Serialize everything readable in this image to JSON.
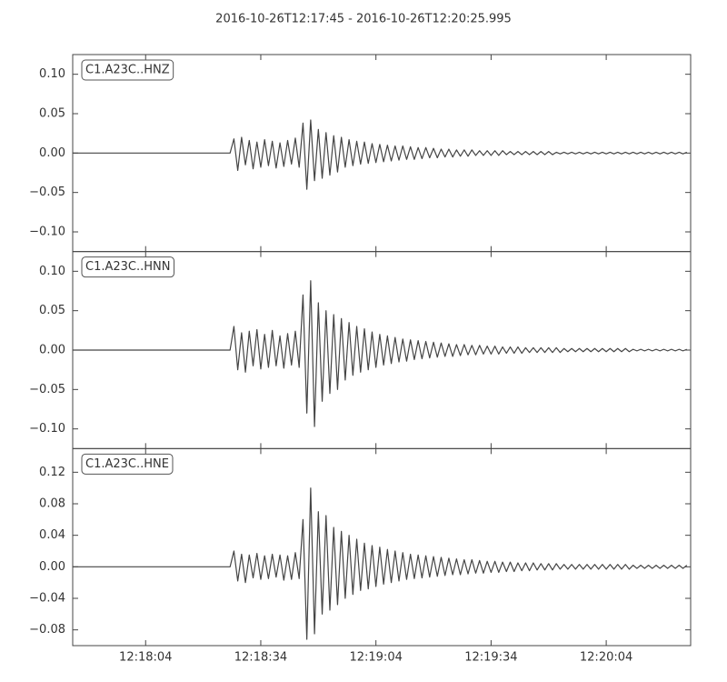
{
  "chart_data": {
    "type": "line",
    "title": "2016-10-26T12:17:45  -  2016-10-26T12:20:25.995",
    "x": [
      "12:17:45",
      "12:17:46",
      "12:17:47",
      "12:17:48",
      "12:17:49",
      "12:17:50",
      "12:17:51",
      "12:17:52",
      "12:17:53",
      "12:17:54",
      "12:17:55",
      "12:17:56",
      "12:17:57",
      "12:17:58",
      "12:17:59",
      "12:18:00",
      "12:18:01",
      "12:18:02",
      "12:18:03",
      "12:18:04",
      "12:18:05",
      "12:18:06",
      "12:18:07",
      "12:18:08",
      "12:18:09",
      "12:18:10",
      "12:18:11",
      "12:18:12",
      "12:18:13",
      "12:18:14",
      "12:18:15",
      "12:18:16",
      "12:18:17",
      "12:18:18",
      "12:18:19",
      "12:18:20",
      "12:18:21",
      "12:18:22",
      "12:18:23",
      "12:18:24",
      "12:18:25",
      "12:18:26",
      "12:18:27",
      "12:18:28",
      "12:18:29",
      "12:18:30",
      "12:18:31",
      "12:18:32",
      "12:18:33",
      "12:18:34",
      "12:18:35",
      "12:18:36",
      "12:18:37",
      "12:18:38",
      "12:18:39",
      "12:18:40",
      "12:18:41",
      "12:18:42",
      "12:18:43",
      "12:18:44",
      "12:18:45",
      "12:18:46",
      "12:18:47",
      "12:18:48",
      "12:18:49",
      "12:18:50",
      "12:18:51",
      "12:18:52",
      "12:18:53",
      "12:18:54",
      "12:18:55",
      "12:18:56",
      "12:18:57",
      "12:18:58",
      "12:18:59",
      "12:19:00",
      "12:19:01",
      "12:19:02",
      "12:19:03",
      "12:19:04",
      "12:19:05",
      "12:19:06",
      "12:19:07",
      "12:19:08",
      "12:19:09",
      "12:19:10",
      "12:19:11",
      "12:19:12",
      "12:19:13",
      "12:19:14",
      "12:19:15",
      "12:19:16",
      "12:19:17",
      "12:19:18",
      "12:19:19",
      "12:19:20",
      "12:19:21",
      "12:19:22",
      "12:19:23",
      "12:19:24",
      "12:19:25",
      "12:19:26",
      "12:19:27",
      "12:19:28",
      "12:19:29",
      "12:19:30",
      "12:19:31",
      "12:19:32",
      "12:19:33",
      "12:19:34",
      "12:19:35",
      "12:19:36",
      "12:19:37",
      "12:19:38",
      "12:19:39",
      "12:19:40",
      "12:19:41",
      "12:19:42",
      "12:19:43",
      "12:19:44",
      "12:19:45",
      "12:19:46",
      "12:19:47",
      "12:19:48",
      "12:19:49",
      "12:19:50",
      "12:19:51",
      "12:19:52",
      "12:19:53",
      "12:19:54",
      "12:19:55",
      "12:19:56",
      "12:19:57",
      "12:19:58",
      "12:19:59",
      "12:20:00",
      "12:20:01",
      "12:20:02",
      "12:20:03",
      "12:20:04",
      "12:20:05",
      "12:20:06",
      "12:20:07",
      "12:20:08",
      "12:20:09",
      "12:20:10",
      "12:20:11",
      "12:20:12",
      "12:20:13",
      "12:20:14",
      "12:20:15",
      "12:20:16",
      "12:20:17",
      "12:20:18",
      "12:20:19",
      "12:20:20",
      "12:20:21",
      "12:20:22",
      "12:20:23",
      "12:20:24",
      "12:20:25"
    ],
    "xlim": [
      "12:17:45",
      "12:20:25.995"
    ],
    "xticks": [
      "12:18:04",
      "12:18:34",
      "12:19:04",
      "12:19:34",
      "12:20:04"
    ],
    "series": [
      {
        "name": "C1.A23C..HNZ",
        "color": "#444444",
        "ylim": [
          -0.125,
          0.125
        ],
        "yticks": [
          {
            "value": 0.1,
            "label": "0.10"
          },
          0.05,
          {
            "value": 0,
            "label": "0.00"
          },
          {
            "value": -0.05,
            "label": "−0.05"
          },
          {
            "value": -0.1,
            "label": "−0.10"
          }
        ],
        "values": [
          0,
          0,
          0,
          0,
          0,
          0,
          0,
          0,
          0,
          0,
          0,
          0,
          0,
          0,
          0,
          0,
          0,
          0,
          0,
          0,
          0,
          0,
          0,
          0,
          0,
          0,
          0,
          0,
          0,
          0,
          0,
          0,
          0,
          0,
          0,
          0,
          0,
          0,
          0,
          0,
          0,
          0,
          0.018,
          -0.022,
          0.02,
          -0.015,
          0.016,
          -0.02,
          0.014,
          -0.018,
          0.017,
          -0.016,
          0.015,
          -0.019,
          0.013,
          -0.017,
          0.016,
          -0.014,
          0.019,
          -0.018,
          0.038,
          -0.046,
          0.042,
          -0.035,
          0.03,
          -0.032,
          0.026,
          -0.028,
          0.022,
          -0.024,
          0.02,
          -0.018,
          0.017,
          -0.016,
          0.015,
          -0.014,
          0.014,
          -0.013,
          0.012,
          -0.012,
          0.011,
          -0.011,
          0.01,
          -0.01,
          0.009,
          -0.009,
          0.009,
          -0.008,
          0.008,
          -0.008,
          0.007,
          -0.007,
          0.007,
          -0.006,
          0.006,
          -0.006,
          0.005,
          -0.005,
          0.005,
          -0.005,
          0.004,
          -0.004,
          0.004,
          -0.004,
          0.004,
          -0.003,
          0.003,
          -0.003,
          0.003,
          -0.003,
          0.003,
          -0.003,
          0.003,
          -0.002,
          0.002,
          -0.002,
          0.002,
          -0.002,
          0.002,
          -0.002,
          0.002,
          -0.002,
          0.002,
          -0.002,
          0.002,
          -0.002,
          0.001,
          -0.001,
          0.001,
          -0.001,
          0.001,
          -0.001,
          0.001,
          -0.001,
          0.001,
          -0.001,
          0.001,
          -0.001,
          0.001,
          -0.001,
          0.001,
          -0.001,
          0.001,
          -0.001,
          0.001,
          -0.001,
          0.001,
          -0.001,
          0.001,
          -0.001,
          0.001,
          -0.001,
          0.001,
          -0.001,
          0.001,
          -0.001,
          0.001,
          -0.001,
          0.001,
          -0.001,
          0.001
        ]
      },
      {
        "name": "C1.A23C..HNN",
        "color": "#444444",
        "ylim": [
          -0.125,
          0.125
        ],
        "yticks": [
          {
            "value": 0.1,
            "label": "0.10"
          },
          0.05,
          {
            "value": 0,
            "label": "0.00"
          },
          {
            "value": -0.05,
            "label": "−0.05"
          },
          {
            "value": -0.1,
            "label": "−0.10"
          }
        ],
        "values": [
          0,
          0,
          0,
          0,
          0,
          0,
          0,
          0,
          0,
          0,
          0,
          0,
          0,
          0,
          0,
          0,
          0,
          0,
          0,
          0,
          0,
          0,
          0,
          0,
          0,
          0,
          0,
          0,
          0,
          0,
          0,
          0,
          0,
          0,
          0,
          0,
          0,
          0,
          0,
          0,
          0,
          0,
          0.03,
          -0.025,
          0.022,
          -0.028,
          0.024,
          -0.02,
          0.026,
          -0.024,
          0.02,
          -0.022,
          0.025,
          -0.02,
          0.018,
          -0.023,
          0.021,
          -0.019,
          0.024,
          -0.022,
          0.07,
          -0.08,
          0.088,
          -0.097,
          0.06,
          -0.065,
          0.05,
          -0.055,
          0.045,
          -0.05,
          0.04,
          -0.038,
          0.035,
          -0.032,
          0.03,
          -0.028,
          0.027,
          -0.025,
          0.023,
          -0.022,
          0.02,
          -0.019,
          0.018,
          -0.017,
          0.016,
          -0.015,
          0.014,
          -0.014,
          0.013,
          -0.012,
          0.012,
          -0.011,
          0.011,
          -0.01,
          0.01,
          -0.009,
          0.009,
          -0.008,
          0.008,
          -0.008,
          0.007,
          -0.007,
          0.007,
          -0.006,
          0.006,
          -0.006,
          0.006,
          -0.005,
          0.005,
          -0.005,
          0.005,
          -0.005,
          0.004,
          -0.004,
          0.004,
          -0.004,
          0.004,
          -0.004,
          0.003,
          -0.003,
          0.003,
          -0.003,
          0.003,
          -0.003,
          0.003,
          -0.003,
          0.003,
          -0.003,
          0.002,
          -0.002,
          0.002,
          -0.002,
          0.002,
          -0.002,
          0.002,
          -0.002,
          0.002,
          -0.002,
          0.002,
          -0.002,
          0.002,
          -0.002,
          0.002,
          -0.002,
          0.002,
          -0.002,
          0.001,
          -0.001,
          0.001,
          -0.001,
          0.001,
          -0.001,
          0.001,
          -0.001,
          0.001,
          -0.001,
          0.001,
          -0.001,
          0.001,
          -0.001,
          0.001
        ]
      },
      {
        "name": "C1.A23C..HNE",
        "color": "#444444",
        "ylim": [
          -0.1,
          0.15
        ],
        "yticks": [
          0.12,
          0.08,
          0.04,
          {
            "value": 0,
            "label": "0.00"
          },
          {
            "value": -0.04,
            "label": "−0.04"
          },
          {
            "value": -0.08,
            "label": "−0.08"
          }
        ],
        "values": [
          0,
          0,
          0,
          0,
          0,
          0,
          0,
          0,
          0,
          0,
          0,
          0,
          0,
          0,
          0,
          0,
          0,
          0,
          0,
          0,
          0,
          0,
          0,
          0,
          0,
          0,
          0,
          0,
          0,
          0,
          0,
          0,
          0,
          0,
          0,
          0,
          0,
          0,
          0,
          0,
          0,
          0,
          0.02,
          -0.018,
          0.016,
          -0.02,
          0.015,
          -0.014,
          0.017,
          -0.016,
          0.014,
          -0.015,
          0.016,
          -0.013,
          0.015,
          -0.017,
          0.014,
          -0.016,
          0.018,
          -0.015,
          0.06,
          -0.092,
          0.1,
          -0.085,
          0.07,
          -0.06,
          0.065,
          -0.055,
          0.05,
          -0.048,
          0.045,
          -0.04,
          0.04,
          -0.035,
          0.035,
          -0.03,
          0.03,
          -0.028,
          0.027,
          -0.025,
          0.025,
          -0.022,
          0.022,
          -0.02,
          0.02,
          -0.018,
          0.018,
          -0.016,
          0.016,
          -0.015,
          0.015,
          -0.014,
          0.014,
          -0.013,
          0.013,
          -0.012,
          0.012,
          -0.011,
          0.011,
          -0.01,
          0.01,
          -0.01,
          0.009,
          -0.009,
          0.009,
          -0.008,
          0.008,
          -0.008,
          0.007,
          -0.007,
          0.007,
          -0.007,
          0.006,
          -0.006,
          0.006,
          -0.006,
          0.005,
          -0.005,
          0.005,
          -0.005,
          0.005,
          -0.004,
          0.004,
          -0.004,
          0.004,
          -0.004,
          0.004,
          -0.003,
          0.003,
          -0.003,
          0.003,
          -0.003,
          0.003,
          -0.003,
          0.003,
          -0.003,
          0.003,
          -0.003,
          0.003,
          -0.003,
          0.003,
          -0.003,
          0.003,
          -0.003,
          0.003,
          -0.003,
          0.002,
          -0.002,
          0.002,
          -0.002,
          0.002,
          -0.002,
          0.002,
          -0.002,
          0.002,
          -0.002,
          0.002,
          -0.002,
          0.002,
          -0.002,
          0.002
        ]
      }
    ]
  }
}
